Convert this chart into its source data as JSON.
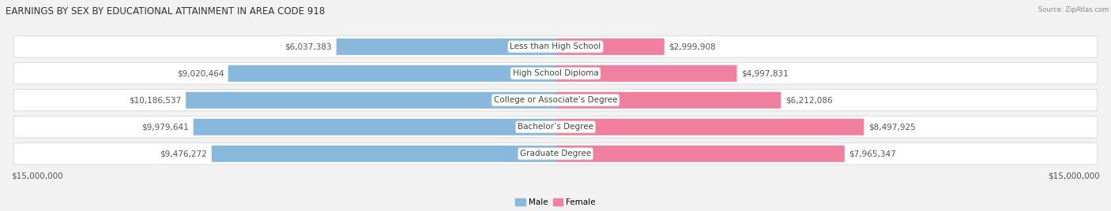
{
  "title": "EARNINGS BY SEX BY EDUCATIONAL ATTAINMENT IN AREA CODE 918",
  "source": "Source: ZipAtlas.com",
  "categories": [
    "Less than High School",
    "High School Diploma",
    "College or Associate’s Degree",
    "Bachelor’s Degree",
    "Graduate Degree"
  ],
  "male_values": [
    6037383,
    9020464,
    10186537,
    9979641,
    9476272
  ],
  "female_values": [
    2999908,
    4997831,
    6212086,
    8497925,
    7965347
  ],
  "male_labels": [
    "$6,037,383",
    "$9,020,464",
    "$10,186,537",
    "$9,979,641",
    "$9,476,272"
  ],
  "female_labels": [
    "$2,999,908",
    "$4,997,831",
    "$6,212,086",
    "$8,497,925",
    "$7,965,347"
  ],
  "male_color": "#88b8dc",
  "female_color": "#f07fa0",
  "background_color": "#f2f2f2",
  "row_bg_color": "#e8e8e8",
  "max_value": 15000000,
  "xlim_label": "$15,000,000",
  "legend_male": "Male",
  "legend_female": "Female",
  "title_fontsize": 8.5,
  "value_fontsize": 7.5,
  "category_fontsize": 7.5,
  "bar_height": 0.62
}
